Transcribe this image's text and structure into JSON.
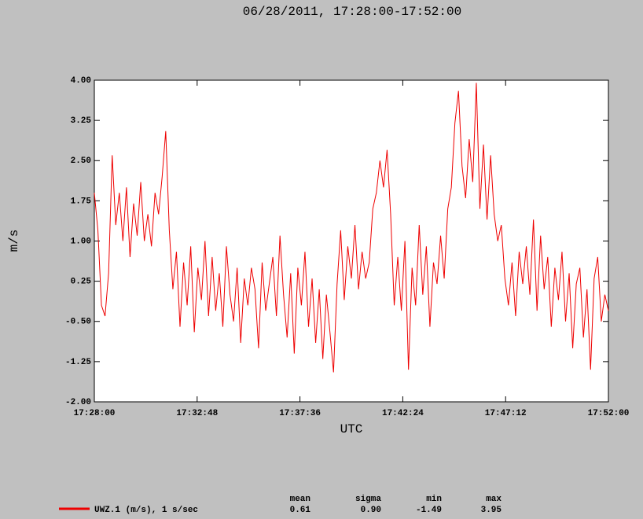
{
  "chart_data": {
    "type": "line",
    "title": "06/28/2011, 17:28:00-17:52:00",
    "ylabel": "m/s",
    "xlabel": "UTC",
    "xlim": [
      "17:28:00",
      "17:52:00"
    ],
    "xticks": [
      "17:28:00",
      "17:32:48",
      "17:37:36",
      "17:42:24",
      "17:47:12",
      "17:52:00"
    ],
    "ylim": [
      -2,
      4
    ],
    "yticks": [
      {
        "value": -2,
        "label": "-2.00"
      },
      {
        "value": -1.25,
        "label": "-1.25"
      },
      {
        "value": -0.5,
        "label": "-0.50"
      },
      {
        "value": 0.25,
        "label": "0.25"
      },
      {
        "value": 1,
        "label": "1.00"
      },
      {
        "value": 1.75,
        "label": "1.75"
      },
      {
        "value": 2.5,
        "label": "2.50"
      },
      {
        "value": 3.25,
        "label": "3.25"
      },
      {
        "value": 4,
        "label": "4.00"
      }
    ],
    "x": [
      "17:28:00",
      "17:28:10",
      "17:28:20",
      "17:28:30",
      "17:28:40",
      "17:28:50",
      "17:29:00",
      "17:29:10",
      "17:29:20",
      "17:29:30",
      "17:29:40",
      "17:29:50",
      "17:30:00",
      "17:30:10",
      "17:30:20",
      "17:30:30",
      "17:30:40",
      "17:30:50",
      "17:31:00",
      "17:31:10",
      "17:31:20",
      "17:31:30",
      "17:31:40",
      "17:31:50",
      "17:32:00",
      "17:32:10",
      "17:32:20",
      "17:32:30",
      "17:32:40",
      "17:32:50",
      "17:33:00",
      "17:33:10",
      "17:33:20",
      "17:33:30",
      "17:33:40",
      "17:33:50",
      "17:34:00",
      "17:34:10",
      "17:34:20",
      "17:34:30",
      "17:34:40",
      "17:34:50",
      "17:35:00",
      "17:35:10",
      "17:35:20",
      "17:35:30",
      "17:35:40",
      "17:35:50",
      "17:36:00",
      "17:36:10",
      "17:36:20",
      "17:36:30",
      "17:36:40",
      "17:36:50",
      "17:37:00",
      "17:37:10",
      "17:37:20",
      "17:37:30",
      "17:37:40",
      "17:37:50",
      "17:38:00",
      "17:38:10",
      "17:38:20",
      "17:38:30",
      "17:38:40",
      "17:38:50",
      "17:39:00",
      "17:39:10",
      "17:39:20",
      "17:39:30",
      "17:39:40",
      "17:39:50",
      "17:40:00",
      "17:40:10",
      "17:40:20",
      "17:40:30",
      "17:40:40",
      "17:40:50",
      "17:41:00",
      "17:41:10",
      "17:41:20",
      "17:41:30",
      "17:41:40",
      "17:41:50",
      "17:42:00",
      "17:42:10",
      "17:42:20",
      "17:42:30",
      "17:42:40",
      "17:42:50",
      "17:43:00",
      "17:43:10",
      "17:43:20",
      "17:43:30",
      "17:43:40",
      "17:43:50",
      "17:44:00",
      "17:44:10",
      "17:44:20",
      "17:44:30",
      "17:44:40",
      "17:44:50",
      "17:45:00",
      "17:45:10",
      "17:45:20",
      "17:45:30",
      "17:45:40",
      "17:45:50",
      "17:46:00",
      "17:46:10",
      "17:46:20",
      "17:46:30",
      "17:46:40",
      "17:46:50",
      "17:47:00",
      "17:47:10",
      "17:47:20",
      "17:47:30",
      "17:47:40",
      "17:47:50",
      "17:48:00",
      "17:48:10",
      "17:48:20",
      "17:48:30",
      "17:48:40",
      "17:48:50",
      "17:49:00",
      "17:49:10",
      "17:49:20",
      "17:49:30",
      "17:49:40",
      "17:49:50",
      "17:50:00",
      "17:50:10",
      "17:50:20",
      "17:50:30",
      "17:50:40",
      "17:50:50",
      "17:51:00",
      "17:51:10",
      "17:51:20",
      "17:51:30",
      "17:51:40",
      "17:51:50",
      "17:52:00"
    ],
    "series": [
      {
        "name": "UWZ.1 (m/s), 1 s/sec",
        "color": "#ee0000",
        "values": [
          1.9,
          1.2,
          -0.2,
          -0.4,
          0.4,
          2.6,
          1.3,
          1.9,
          1.0,
          2.0,
          0.7,
          1.7,
          1.1,
          2.1,
          1.0,
          1.5,
          0.9,
          1.9,
          1.5,
          2.2,
          3.05,
          1.2,
          0.1,
          0.8,
          -0.6,
          0.6,
          -0.2,
          0.9,
          -0.7,
          0.5,
          -0.1,
          1.0,
          -0.4,
          0.7,
          -0.3,
          0.4,
          -0.6,
          0.9,
          0.0,
          -0.5,
          0.5,
          -0.9,
          0.3,
          -0.2,
          0.5,
          0.1,
          -1.0,
          0.6,
          -0.3,
          0.2,
          0.7,
          -0.4,
          1.1,
          0.0,
          -0.8,
          0.4,
          -1.1,
          0.5,
          -0.2,
          0.8,
          -0.6,
          0.3,
          -0.9,
          0.1,
          -1.2,
          0.0,
          -0.7,
          -1.45,
          0.2,
          1.2,
          -0.1,
          0.9,
          0.3,
          1.3,
          0.1,
          0.8,
          0.3,
          0.6,
          1.6,
          1.9,
          2.5,
          2.0,
          2.7,
          1.5,
          -0.2,
          0.7,
          -0.3,
          1.0,
          -1.4,
          0.5,
          -0.2,
          1.3,
          0.0,
          0.9,
          -0.6,
          0.6,
          0.2,
          1.1,
          0.3,
          1.6,
          2.0,
          3.2,
          3.8,
          2.4,
          1.8,
          2.9,
          2.1,
          3.95,
          1.6,
          2.8,
          1.4,
          2.6,
          1.5,
          1.0,
          1.3,
          0.3,
          -0.2,
          0.6,
          -0.4,
          0.8,
          0.2,
          0.9,
          0.0,
          1.4,
          -0.3,
          1.1,
          0.1,
          0.7,
          -0.6,
          0.5,
          -0.1,
          0.8,
          -0.5,
          0.4,
          -1.0,
          0.2,
          0.5,
          -0.8,
          0.1,
          -1.4,
          0.3,
          0.7,
          -0.5,
          0.0,
          -0.3
        ]
      }
    ],
    "stats": {
      "headers": [
        "mean",
        "sigma",
        "min",
        "max"
      ],
      "values": [
        "0.61",
        "0.90",
        "-1.49",
        "3.95"
      ]
    }
  }
}
